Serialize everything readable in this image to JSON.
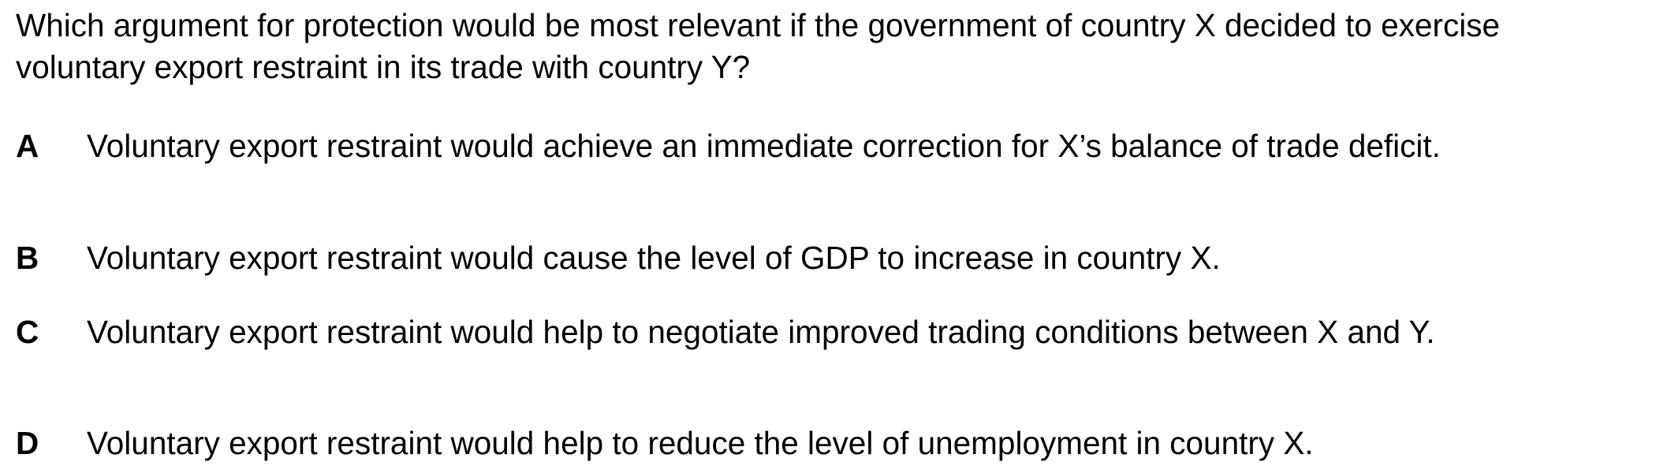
{
  "question": {
    "text": "Which argument for protection would be most relevant if the government of country X decided to exercise voluntary export restraint in its trade with country Y?"
  },
  "options": [
    {
      "letter": "A",
      "text": "Voluntary export restraint would achieve an immediate correction for X’s balance of trade deficit."
    },
    {
      "letter": "B",
      "text": "Voluntary export restraint would cause the level of GDP to increase in country X."
    },
    {
      "letter": "C",
      "text": "Voluntary export restraint would help to negotiate improved trading conditions between X and Y."
    },
    {
      "letter": "D",
      "text": "Voluntary export restraint would help to reduce the level of unemployment in country X."
    }
  ]
}
